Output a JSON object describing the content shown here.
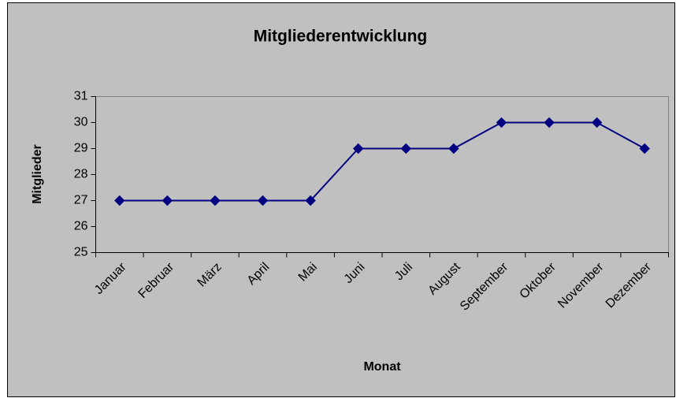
{
  "chart_data": {
    "type": "line",
    "title": "Mitgliederentwicklung",
    "x_label": "Monat",
    "y_label": "Mitglieder",
    "categories": [
      "Januar",
      "Februar",
      "März",
      "April",
      "Mai",
      "Juni",
      "Juli",
      "August",
      "September",
      "Oktober",
      "November",
      "Dezember"
    ],
    "series": [
      {
        "name": "Mitglieder",
        "color": "#000080",
        "values": [
          27,
          27,
          27,
          27,
          27,
          29,
          29,
          29,
          30,
          30,
          30,
          29
        ]
      }
    ],
    "ylim": [
      25,
      31
    ],
    "yticks": [
      25,
      26,
      27,
      28,
      29,
      30,
      31
    ],
    "grid": false
  }
}
